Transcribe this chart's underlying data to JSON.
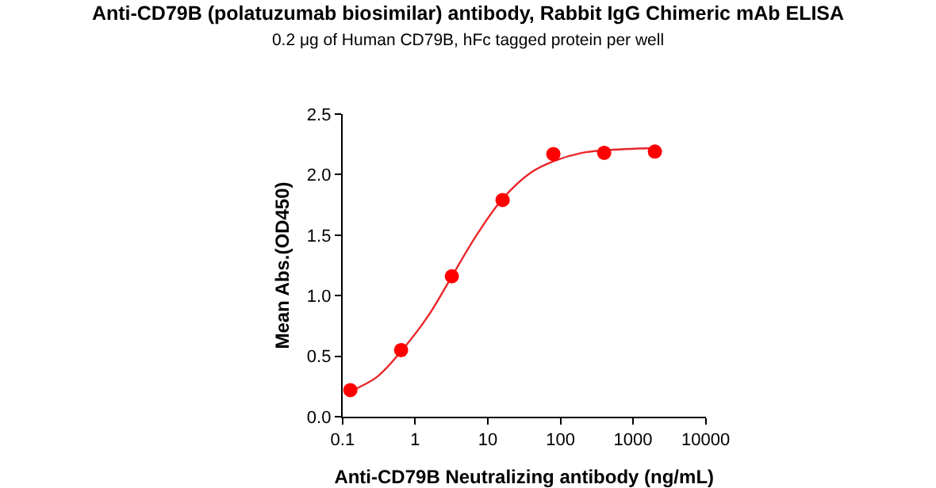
{
  "chart_data": {
    "type": "scatter",
    "title": "Anti-CD79B (polatuzumab biosimilar) antibody, Rabbit IgG Chimeric mAb ELISA",
    "subtitle": "0.2 μg of Human CD79B, hFc tagged protein per well",
    "xlabel": "Anti-CD79B Neutralizing antibody (ng/mL)",
    "ylabel": "Mean Abs.(OD450)",
    "log": "x",
    "grid": false,
    "marker": "circle",
    "xlim": [
      0.1,
      10000
    ],
    "xticks": [
      0.1,
      1,
      10,
      100,
      1000,
      10000
    ],
    "ylim": [
      0,
      2.5
    ],
    "yticks": [
      {
        "value": 0,
        "label": "0.0"
      },
      {
        "value": 0.5,
        "label": "0.5"
      },
      {
        "value": 1,
        "label": "1.0"
      },
      {
        "value": 1.5,
        "label": "1.5"
      },
      {
        "value": 2,
        "label": "2.0"
      },
      {
        "value": 2.5,
        "label": "2.5"
      }
    ],
    "series": [
      {
        "type": "line",
        "color": "#e8262a",
        "marker": "none",
        "line_style": "solid",
        "x": [
          0.128,
          0.3,
          0.64,
          1.5,
          3.2,
          7,
          16,
          40,
          80,
          200,
          400,
          2000
        ],
        "values": [
          0.21,
          0.33,
          0.54,
          0.83,
          1.16,
          1.5,
          1.8,
          2.02,
          2.11,
          2.18,
          2.2,
          2.22
        ]
      },
      {
        "color": "#ff0000",
        "x": [
          0.128,
          0.64,
          3.2,
          16,
          80,
          400,
          2000
        ],
        "values": [
          0.22,
          0.55,
          1.16,
          1.79,
          2.17,
          2.18,
          2.19
        ]
      }
    ]
  }
}
